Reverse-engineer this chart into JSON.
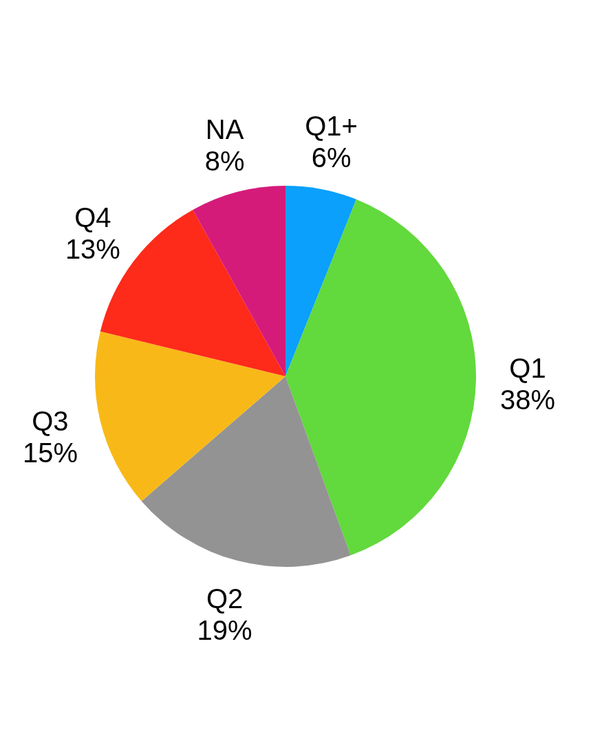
{
  "chart_data": {
    "type": "pie",
    "categories": [
      "Q1+",
      "Q1",
      "Q2",
      "Q3",
      "Q4",
      "NA"
    ],
    "values": [
      6,
      38,
      19,
      15,
      13,
      8
    ],
    "value_labels": [
      "6%",
      "38%",
      "19%",
      "15%",
      "13%",
      "8%"
    ],
    "colors": [
      "#0aa0fb",
      "#62d93c",
      "#939393",
      "#f8b918",
      "#fe2a1a",
      "#d51b7a"
    ]
  }
}
